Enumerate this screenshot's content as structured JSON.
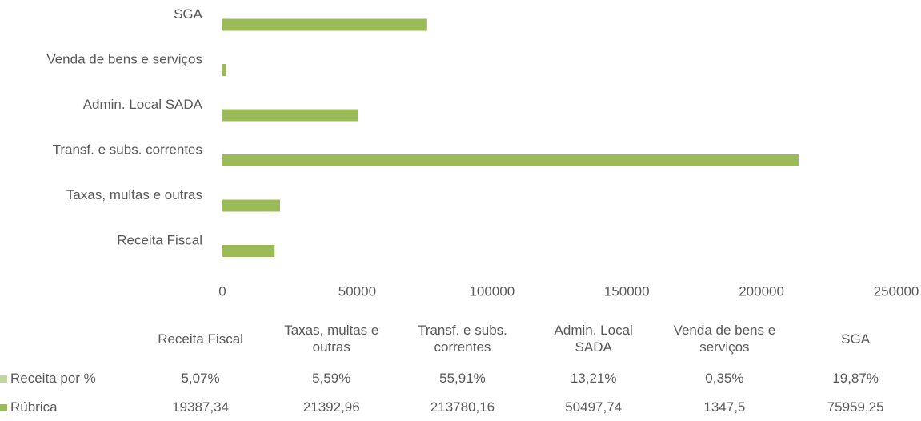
{
  "chart_data": {
    "type": "bar",
    "orientation": "horizontal",
    "categories": [
      "Receita Fiscal",
      "Taxas, multas e outras",
      "Transf. e subs. correntes",
      "Admin. Local SADA",
      "Venda de bens e serviços",
      "SGA"
    ],
    "series": [
      {
        "name": "Receita por %",
        "color": "#c3d69b",
        "values": [
          5.07,
          5.59,
          55.91,
          13.21,
          0.35,
          19.87
        ],
        "value_labels": [
          "5,07%",
          "5,59%",
          "55,91%",
          "13,21%",
          "0,35%",
          "19,87%"
        ]
      },
      {
        "name": "Rúbrica",
        "color": "#9bbb59",
        "values": [
          19387.34,
          21392.96,
          213780.16,
          50497.74,
          1347.5,
          75959.25
        ],
        "value_labels": [
          "19387,34",
          "21392,96",
          "213780,16",
          "50497,74",
          "1347,5",
          "75959,25"
        ]
      }
    ],
    "xlim": [
      0,
      250000
    ],
    "xticks": [
      0,
      50000,
      100000,
      150000,
      200000,
      250000
    ],
    "data_table": true
  }
}
